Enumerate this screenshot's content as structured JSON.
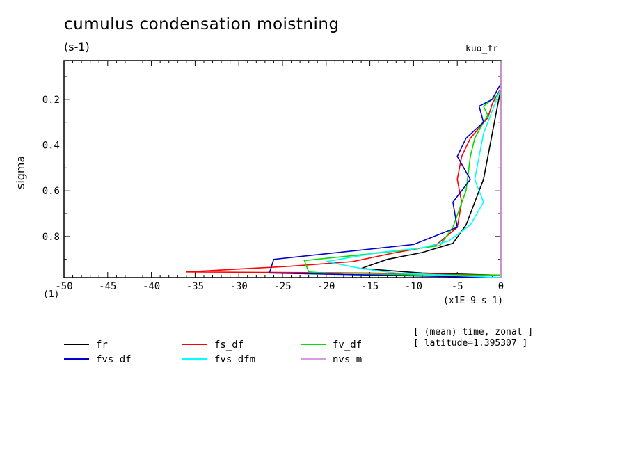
{
  "chart_data": {
    "type": "line",
    "title": "cumulus condensation moistning",
    "units": "(s-1)",
    "variable": "kuo_fr",
    "ylabel": "sigma",
    "x_units_label": "(x1E-9 s-1)",
    "y_units_stub": "(1)",
    "xlim": [
      -50,
      0
    ],
    "ylim": [
      0.98,
      0.03
    ],
    "y_inverted": true,
    "xticks": [
      -50,
      -45,
      -40,
      -35,
      -30,
      -25,
      -20,
      -15,
      -10,
      -5,
      0
    ],
    "xtick_labels": [
      "-50",
      "-45",
      "-40",
      "-35",
      "-30",
      "-25",
      "-20",
      "-15",
      "-10",
      "-5",
      "0"
    ],
    "yticks": [
      0.2,
      0.4,
      0.6,
      0.8
    ],
    "ytick_labels": [
      "0.2",
      "0.4",
      "0.6",
      "0.8"
    ],
    "meta": [
      "[ (mean) time, zonal ]",
      "[ latitude=1.395307 ]"
    ],
    "series": [
      {
        "name": "fr",
        "color": "#000000",
        "points": [
          [
            0,
            0.97
          ],
          [
            -9,
            0.96
          ],
          [
            -16,
            0.94
          ],
          [
            -13,
            0.9
          ],
          [
            -9,
            0.87
          ],
          [
            -5.5,
            0.83
          ],
          [
            -4,
            0.75
          ],
          [
            -3,
            0.65
          ],
          [
            -2,
            0.55
          ],
          [
            -1.5,
            0.45
          ],
          [
            -1,
            0.35
          ],
          [
            -0.5,
            0.25
          ],
          [
            0,
            0.15
          ]
        ]
      },
      {
        "name": "fs_df",
        "color": "#ff0000",
        "points": [
          [
            0,
            0.97
          ],
          [
            -15,
            0.96
          ],
          [
            -36,
            0.955
          ],
          [
            -24,
            0.93
          ],
          [
            -17,
            0.91
          ],
          [
            -12,
            0.87
          ],
          [
            -7.5,
            0.84
          ],
          [
            -5,
            0.76
          ],
          [
            -4.5,
            0.65
          ],
          [
            -5,
            0.55
          ],
          [
            -4.5,
            0.45
          ],
          [
            -3.5,
            0.37
          ],
          [
            -1.5,
            0.28
          ],
          [
            -1,
            0.22
          ],
          [
            0,
            0.15
          ]
        ]
      },
      {
        "name": "fv_df",
        "color": "#00dd00",
        "points": [
          [
            0,
            0.97
          ],
          [
            -18,
            0.965
          ],
          [
            -22,
            0.955
          ],
          [
            -22.5,
            0.905
          ],
          [
            -16,
            0.88
          ],
          [
            -11,
            0.86
          ],
          [
            -7,
            0.84
          ],
          [
            -5.5,
            0.76
          ],
          [
            -4,
            0.6
          ],
          [
            -3.5,
            0.45
          ],
          [
            -3,
            0.37
          ],
          [
            -2,
            0.3
          ],
          [
            -1.5,
            0.27
          ],
          [
            -2,
            0.23
          ],
          [
            0,
            0.17
          ]
        ]
      },
      {
        "name": "fvs_df",
        "color": "#0000cc",
        "points": [
          [
            0,
            0.98
          ],
          [
            -26.5,
            0.96
          ],
          [
            -26,
            0.9
          ],
          [
            -10,
            0.835
          ],
          [
            -5,
            0.76
          ],
          [
            -5.5,
            0.65
          ],
          [
            -3.5,
            0.55
          ],
          [
            -5,
            0.45
          ],
          [
            -4,
            0.37
          ],
          [
            -2,
            0.3
          ],
          [
            -2.5,
            0.23
          ],
          [
            -1,
            0.2
          ],
          [
            0,
            0.13
          ]
        ]
      },
      {
        "name": "fvs_dfm",
        "color": "#00ffff",
        "points": [
          [
            0,
            0.98
          ],
          [
            -12,
            0.96
          ],
          [
            -16,
            0.94
          ],
          [
            -20,
            0.91
          ],
          [
            -14,
            0.87
          ],
          [
            -9,
            0.85
          ],
          [
            -6,
            0.82
          ],
          [
            -3.5,
            0.75
          ],
          [
            -2,
            0.65
          ],
          [
            -3,
            0.55
          ],
          [
            -2.5,
            0.45
          ],
          [
            -2,
            0.35
          ],
          [
            -1,
            0.25
          ],
          [
            0,
            0.15
          ]
        ]
      },
      {
        "name": "nvs_m",
        "color": "#dd99dd",
        "points": [
          [
            0,
            0.98
          ],
          [
            0,
            0.03
          ]
        ]
      }
    ]
  }
}
